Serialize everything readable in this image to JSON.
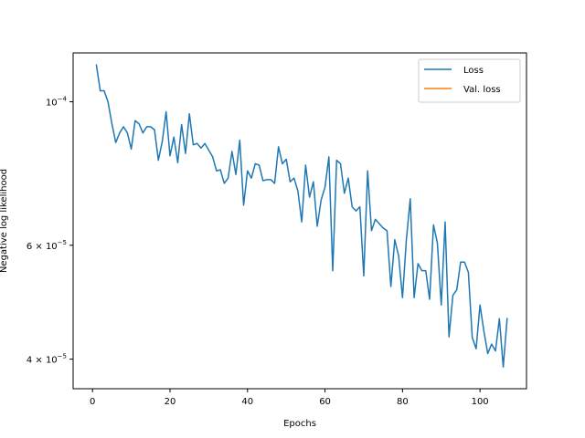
{
  "chart_data": {
    "type": "line",
    "title": "",
    "xlabel": "Epochs",
    "ylabel": "Negative log likelihood",
    "xlim": [
      -5,
      112
    ],
    "ylim": [
      3.6e-05,
      0.000119
    ],
    "yscale": "log",
    "grid": false,
    "legend_position": "top-right",
    "x_ticks": [
      {
        "value": 0,
        "label": "0"
      },
      {
        "value": 20,
        "label": "20"
      },
      {
        "value": 40,
        "label": "40"
      },
      {
        "value": 60,
        "label": "60"
      },
      {
        "value": 80,
        "label": "80"
      },
      {
        "value": 100,
        "label": "100"
      }
    ],
    "y_ticks": [
      {
        "value": 0.0001,
        "label": "10",
        "sup": "−4"
      },
      {
        "value": 6e-05,
        "label": "6 × 10",
        "sup": "−5"
      },
      {
        "value": 4e-05,
        "label": "4 × 10",
        "sup": "−5"
      }
    ],
    "series": [
      {
        "name": "Loss",
        "color": "#1f77b4",
        "x": [
          1,
          2,
          3,
          4,
          5,
          6,
          7,
          8,
          9,
          10,
          11,
          12,
          13,
          14,
          15,
          16,
          17,
          18,
          19,
          20,
          21,
          22,
          23,
          24,
          25,
          26,
          27,
          28,
          29,
          30,
          31,
          32,
          33,
          34,
          35,
          36,
          37,
          38,
          39,
          40,
          41,
          42,
          43,
          44,
          45,
          46,
          47,
          48,
          49,
          50,
          51,
          52,
          53,
          54,
          55,
          56,
          57,
          58,
          59,
          60,
          61,
          62,
          63,
          64,
          65,
          66,
          67,
          68,
          69,
          70,
          71,
          72,
          73,
          74,
          75,
          76,
          77,
          78,
          79,
          80,
          81,
          82,
          83,
          84,
          85,
          86,
          87,
          88,
          89,
          90,
          91,
          92,
          93,
          94,
          95,
          96,
          97,
          98,
          99,
          100,
          101,
          102,
          103,
          104,
          105,
          106,
          107
        ],
        "values": [
          0.000114,
          0.000104,
          0.000104,
          0.0001,
          9.25e-05,
          8.65e-05,
          8.95e-05,
          9.15e-05,
          8.95e-05,
          8.45e-05,
          9.35e-05,
          9.25e-05,
          8.95e-05,
          9.15e-05,
          9.15e-05,
          9.05e-05,
          8.12e-05,
          8.68e-05,
          9.65e-05,
          8.25e-05,
          8.82e-05,
          8.05e-05,
          9.22e-05,
          8.32e-05,
          9.58e-05,
          8.58e-05,
          8.62e-05,
          8.48e-05,
          8.62e-05,
          8.42e-05,
          8.22e-05,
          7.82e-05,
          7.85e-05,
          7.48e-05,
          7.62e-05,
          8.38e-05,
          7.72e-05,
          8.72e-05,
          6.92e-05,
          7.82e-05,
          7.62e-05,
          8.02e-05,
          7.98e-05,
          7.55e-05,
          7.58e-05,
          7.58e-05,
          7.48e-05,
          8.52e-05,
          8.02e-05,
          8.15e-05,
          7.52e-05,
          7.62e-05,
          7.28e-05,
          6.52e-05,
          7.98e-05,
          7.12e-05,
          7.52e-05,
          6.42e-05,
          7.05e-05,
          7.38e-05,
          8.22e-05,
          5.48e-05,
          8.12e-05,
          8.02e-05,
          7.22e-05,
          7.62e-05,
          6.88e-05,
          6.78e-05,
          6.88e-05,
          5.38e-05,
          7.82e-05,
          6.32e-05,
          6.58e-05,
          6.48e-05,
          6.38e-05,
          6.32e-05,
          5.18e-05,
          6.12e-05,
          5.78e-05,
          4.98e-05,
          6.12e-05,
          7.08e-05,
          4.98e-05,
          5.62e-05,
          5.48e-05,
          5.48e-05,
          4.95e-05,
          6.45e-05,
          6.05e-05,
          4.85e-05,
          6.52e-05,
          4.33e-05,
          5.02e-05,
          5.12e-05,
          5.65e-05,
          5.65e-05,
          5.45e-05,
          4.32e-05,
          4.15e-05,
          4.85e-05,
          4.42e-05,
          4.08e-05,
          4.22e-05,
          4.12e-05,
          4.62e-05,
          3.89e-05,
          4.62e-05
        ]
      },
      {
        "name": "Val. loss",
        "color": "#ff7f0e",
        "x": [],
        "values": []
      }
    ]
  }
}
